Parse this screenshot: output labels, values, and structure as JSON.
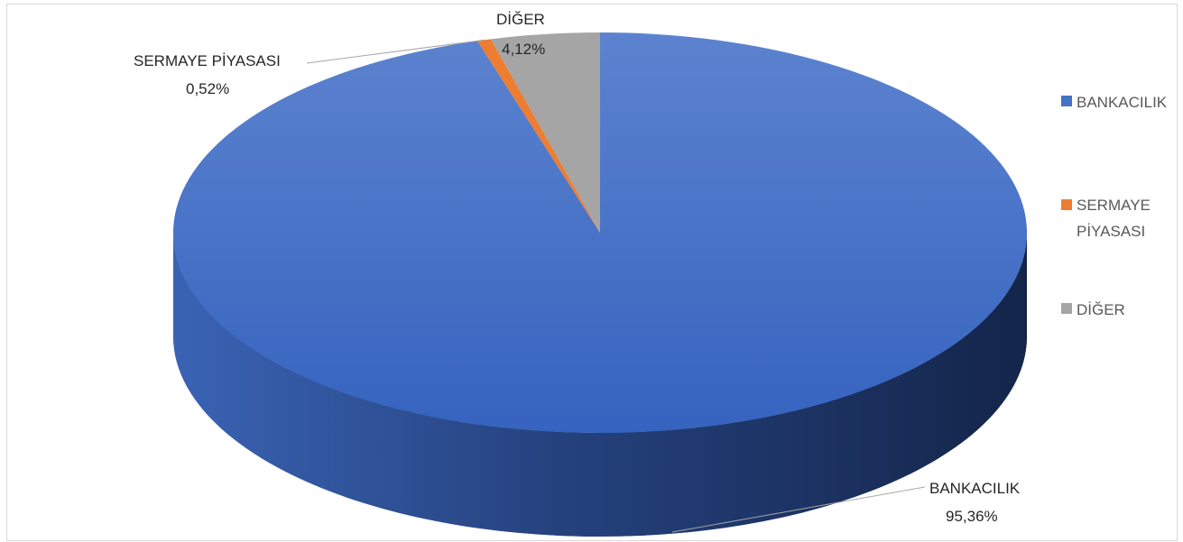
{
  "chart_data": {
    "type": "pie",
    "style": "3d-pie",
    "categories": [
      "BANKACILIK",
      "SERMAYE PİYASASI",
      "DİĞER"
    ],
    "values": [
      95.36,
      0.52,
      4.12
    ],
    "units": "%",
    "data_labels": [
      {
        "name": "BANKACILIK",
        "value": "95,36%"
      },
      {
        "name": "SERMAYE PİYASASI",
        "value": "0,52%"
      },
      {
        "name": "DİĞER",
        "value": "4,12%"
      }
    ],
    "legend": {
      "placement": "right",
      "entries": [
        {
          "label": "BANKACILIK",
          "color": "#4472c4"
        },
        {
          "label_lines": [
            "SERMAYE",
            "PİYASASI"
          ],
          "color": "#ed7d31"
        },
        {
          "label": "DİĞER",
          "color": "#a5a5a5"
        }
      ]
    },
    "colors": [
      "#4472c4",
      "#ed7d31",
      "#a5a5a5"
    ]
  }
}
